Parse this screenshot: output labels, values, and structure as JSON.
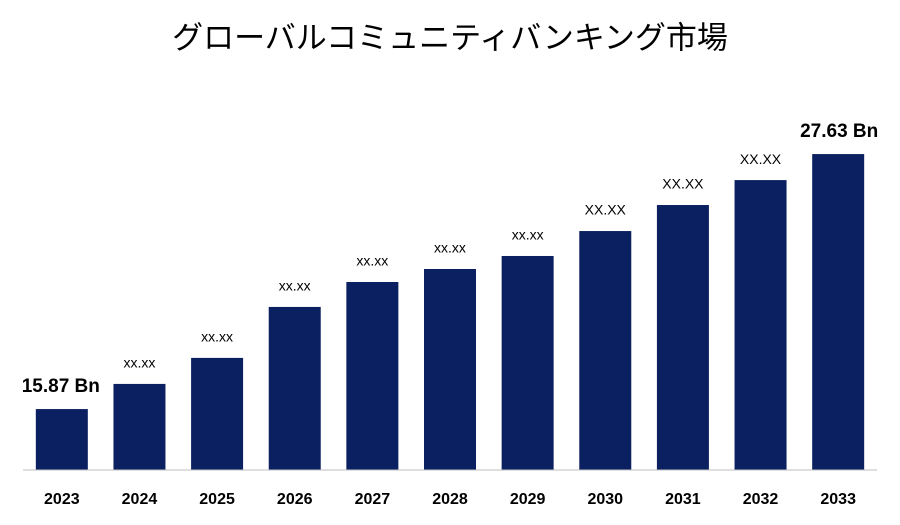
{
  "chart_data": {
    "type": "bar",
    "title": "グローバルコミュニティバンキング市場",
    "categories": [
      "2023",
      "2024",
      "2025",
      "2026",
      "2027",
      "2028",
      "2029",
      "2030",
      "2031",
      "2032",
      "2033"
    ],
    "values": [
      15.87,
      17.03,
      18.23,
      20.58,
      21.73,
      22.33,
      22.93,
      24.08,
      25.28,
      26.43,
      27.63
    ],
    "value_labels": [
      "15.87 Bn",
      "xx.xx",
      "xx.xx",
      "xx.xx",
      "xx.xx",
      "xx.xx",
      "xx.xx",
      "XX.XX",
      "XX.XX",
      "XX.XX",
      "27.63 Bn"
    ],
    "color": "#0b2060",
    "ylim": [
      13.06,
      28.74
    ]
  }
}
